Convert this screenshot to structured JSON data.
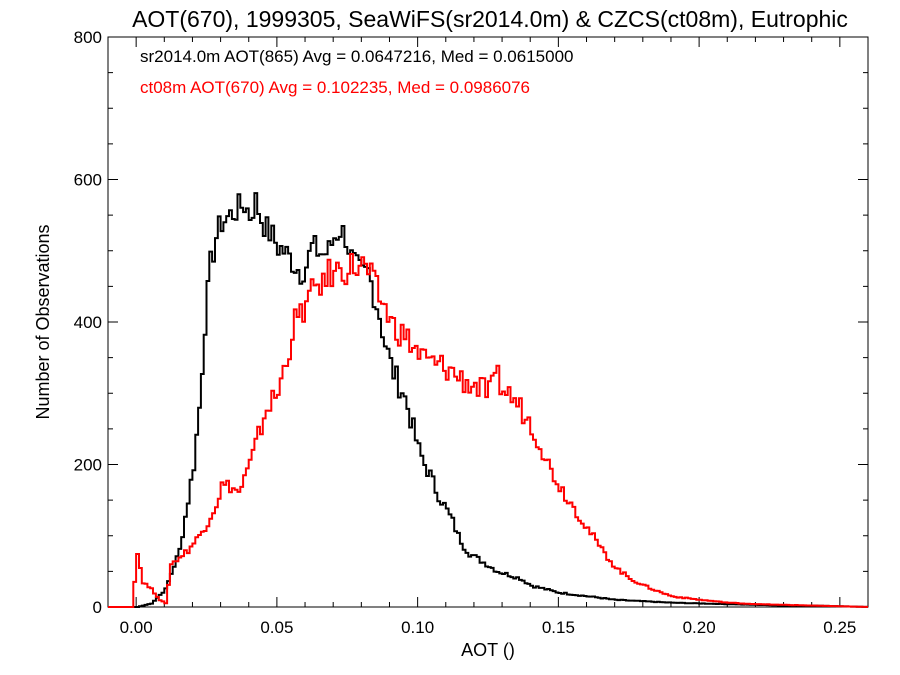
{
  "chart_data": {
    "type": "line",
    "title": "AOT(670), 1999305, SeaWiFS(sr2014.0m) & CZCS(ct08m), Eutrophic",
    "xlabel": "AOT ()",
    "ylabel": "Number of Observations",
    "xlim": [
      -0.01,
      0.26
    ],
    "ylim": [
      0,
      800
    ],
    "x_ticks": [
      0.0,
      0.05,
      0.1,
      0.15,
      0.2,
      0.25
    ],
    "x_tick_labels": [
      "0.00",
      "0.05",
      "0.10",
      "0.15",
      "0.20",
      "0.25"
    ],
    "y_ticks": [
      0,
      200,
      400,
      600,
      800
    ],
    "y_tick_labels": [
      "0",
      "200",
      "400",
      "600",
      "800"
    ],
    "grid": false,
    "annotations": [
      {
        "text": "sr2014.0m AOT(865) Avg = 0.0647216, Med = 0.0615000",
        "color": "#000000"
      },
      {
        "text": "ct08m AOT(670) Avg = 0.102235, Med = 0.0986076",
        "color": "#ff0000"
      }
    ],
    "series": [
      {
        "color": "#000000",
        "x": [
          0.0,
          0.005,
          0.01,
          0.015,
          0.018,
          0.02,
          0.022,
          0.024,
          0.026,
          0.028,
          0.03,
          0.033,
          0.036,
          0.038,
          0.04,
          0.042,
          0.044,
          0.046,
          0.048,
          0.05,
          0.052,
          0.054,
          0.056,
          0.058,
          0.06,
          0.062,
          0.064,
          0.066,
          0.068,
          0.07,
          0.072,
          0.074,
          0.076,
          0.078,
          0.08,
          0.082,
          0.084,
          0.086,
          0.088,
          0.09,
          0.092,
          0.094,
          0.096,
          0.098,
          0.1,
          0.102,
          0.104,
          0.106,
          0.108,
          0.11,
          0.112,
          0.114,
          0.116,
          0.118,
          0.12,
          0.124,
          0.128,
          0.132,
          0.136,
          0.14,
          0.145,
          0.15,
          0.16,
          0.17,
          0.18,
          0.19,
          0.2,
          0.21,
          0.22,
          0.23,
          0.24,
          0.25,
          0.26
        ],
        "y": [
          0,
          5,
          25,
          80,
          150,
          200,
          280,
          400,
          480,
          520,
          540,
          550,
          560,
          565,
          550,
          570,
          545,
          530,
          520,
          505,
          500,
          490,
          480,
          470,
          480,
          505,
          500,
          495,
          500,
          520,
          530,
          520,
          490,
          475,
          465,
          470,
          440,
          410,
          370,
          340,
          320,
          305,
          280,
          250,
          220,
          200,
          185,
          165,
          150,
          135,
          120,
          100,
          85,
          75,
          70,
          60,
          50,
          45,
          40,
          30,
          25,
          20,
          15,
          10,
          8,
          6,
          5,
          4,
          3,
          2,
          2,
          1,
          0
        ]
      },
      {
        "color": "#ff0000",
        "x": [
          -0.002,
          0.0,
          0.002,
          0.005,
          0.008,
          0.01,
          0.012,
          0.015,
          0.018,
          0.02,
          0.022,
          0.025,
          0.028,
          0.03,
          0.033,
          0.036,
          0.038,
          0.04,
          0.043,
          0.046,
          0.05,
          0.053,
          0.056,
          0.058,
          0.06,
          0.062,
          0.064,
          0.066,
          0.068,
          0.07,
          0.072,
          0.074,
          0.076,
          0.078,
          0.08,
          0.082,
          0.084,
          0.086,
          0.088,
          0.09,
          0.092,
          0.095,
          0.098,
          0.1,
          0.103,
          0.106,
          0.11,
          0.115,
          0.12,
          0.125,
          0.128,
          0.13,
          0.133,
          0.136,
          0.14,
          0.143,
          0.146,
          0.15,
          0.155,
          0.16,
          0.165,
          0.17,
          0.175,
          0.18,
          0.185,
          0.19,
          0.2,
          0.21,
          0.22,
          0.23,
          0.24,
          0.25,
          0.26
        ],
        "y": [
          0,
          75,
          35,
          25,
          10,
          5,
          60,
          70,
          80,
          90,
          100,
          120,
          145,
          170,
          170,
          160,
          180,
          200,
          240,
          280,
          300,
          350,
          400,
          410,
          425,
          440,
          455,
          450,
          470,
          465,
          480,
          470,
          480,
          475,
          480,
          470,
          455,
          435,
          420,
          400,
          390,
          380,
          365,
          355,
          345,
          340,
          335,
          320,
          310,
          300,
          320,
          305,
          295,
          280,
          255,
          230,
          200,
          170,
          140,
          110,
          80,
          55,
          40,
          30,
          22,
          15,
          10,
          6,
          4,
          3,
          2,
          1,
          0
        ]
      }
    ]
  }
}
